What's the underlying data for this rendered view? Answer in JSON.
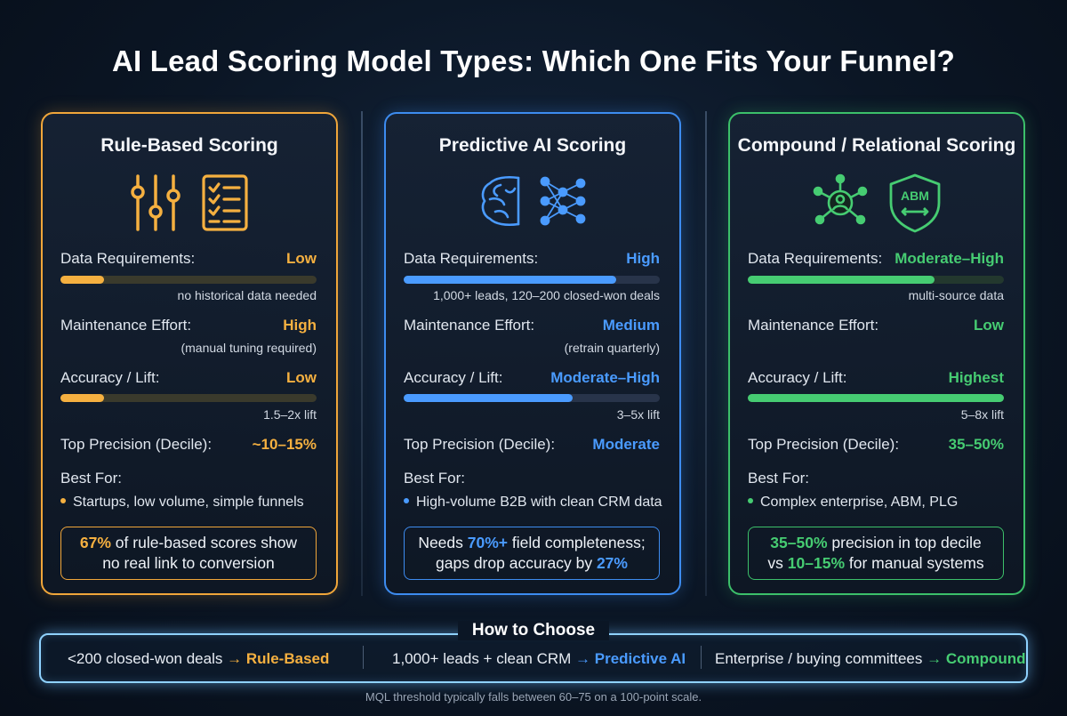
{
  "title": "AI Lead Scoring Model Types: Which One Fits Your Funnel?",
  "colors": {
    "rule": "#f5b040",
    "predictive": "#4a9bff",
    "compound": "#46cc72"
  },
  "cards": [
    {
      "title": "Rule-Based Scoring",
      "icons": [
        "sliders-icon",
        "checklist-icon"
      ],
      "data_label": "Data Requirements:",
      "data_value": "Low",
      "data_level": 0.17,
      "data_note": "no historical data needed",
      "maint_label": "Maintenance Effort:",
      "maint_value": "High",
      "maint_note": "(manual tuning required)",
      "acc_label": "Accuracy / Lift:",
      "acc_value": "Low",
      "acc_level": 0.17,
      "acc_note": "1.5–2x lift",
      "prec_label": "Top Precision (Decile):",
      "prec_value": "~10–15%",
      "best_label": "Best For:",
      "best_value": "Startups, low volume, simple funnels",
      "callout_hl": "67%",
      "callout_a": " of rule-based scores show",
      "callout_b": "no real link to conversion"
    },
    {
      "title": "Predictive AI Scoring",
      "icons": [
        "brain-icon",
        "neural-network-icon"
      ],
      "data_label": "Data Requirements:",
      "data_value": "High",
      "data_level": 0.83,
      "data_note": "1,000+ leads, 120–200 closed-won deals",
      "maint_label": "Maintenance Effort:",
      "maint_value": "Medium",
      "maint_note": "(retrain quarterly)",
      "acc_label": "Accuracy / Lift:",
      "acc_value": "Moderate–High",
      "acc_level": 0.66,
      "acc_note": "3–5x lift",
      "prec_label": "Top Precision (Decile):",
      "prec_value": "Moderate",
      "best_label": "Best For:",
      "best_value": "High-volume B2B with clean CRM data",
      "callout_a1": "Needs ",
      "callout_hl": "70%+",
      "callout_a2": " field completeness;",
      "callout_b1": "gaps drop accuracy by ",
      "callout_hl2": "27%"
    },
    {
      "title": "Compound / Relational Scoring",
      "icons": [
        "network-person-icon",
        "abm-shield-icon"
      ],
      "abm_text": "ABM",
      "data_label": "Data Requirements:",
      "data_value": "Moderate–High",
      "data_level": 0.73,
      "data_note": "multi-source data",
      "maint_label": "Maintenance Effort:",
      "maint_value": "Low",
      "acc_label": "Accuracy / Lift:",
      "acc_value": "Highest",
      "acc_level": 1.0,
      "acc_note": "5–8x lift",
      "prec_label": "Top Precision (Decile):",
      "prec_value": "35–50%",
      "best_label": "Best For:",
      "best_value": "Complex enterprise, ABM, PLG",
      "callout_hl": "35–50%",
      "callout_a": " precision in top decile",
      "callout_b1": "vs ",
      "callout_hl2": "10–15%",
      "callout_b2": " for manual systems"
    }
  ],
  "choose": {
    "title": "How to Choose",
    "options": [
      {
        "text": "<200 closed-won deals",
        "arrow": "→",
        "target": "Rule-Based"
      },
      {
        "text": "1,000+ leads + clean CRM",
        "arrow": "→",
        "target": "Predictive AI"
      },
      {
        "text": "Enterprise / buying committees",
        "arrow": "→",
        "target": "Compound"
      }
    ]
  },
  "footnote": "MQL threshold typically falls between 60–75 on a 100-point scale."
}
